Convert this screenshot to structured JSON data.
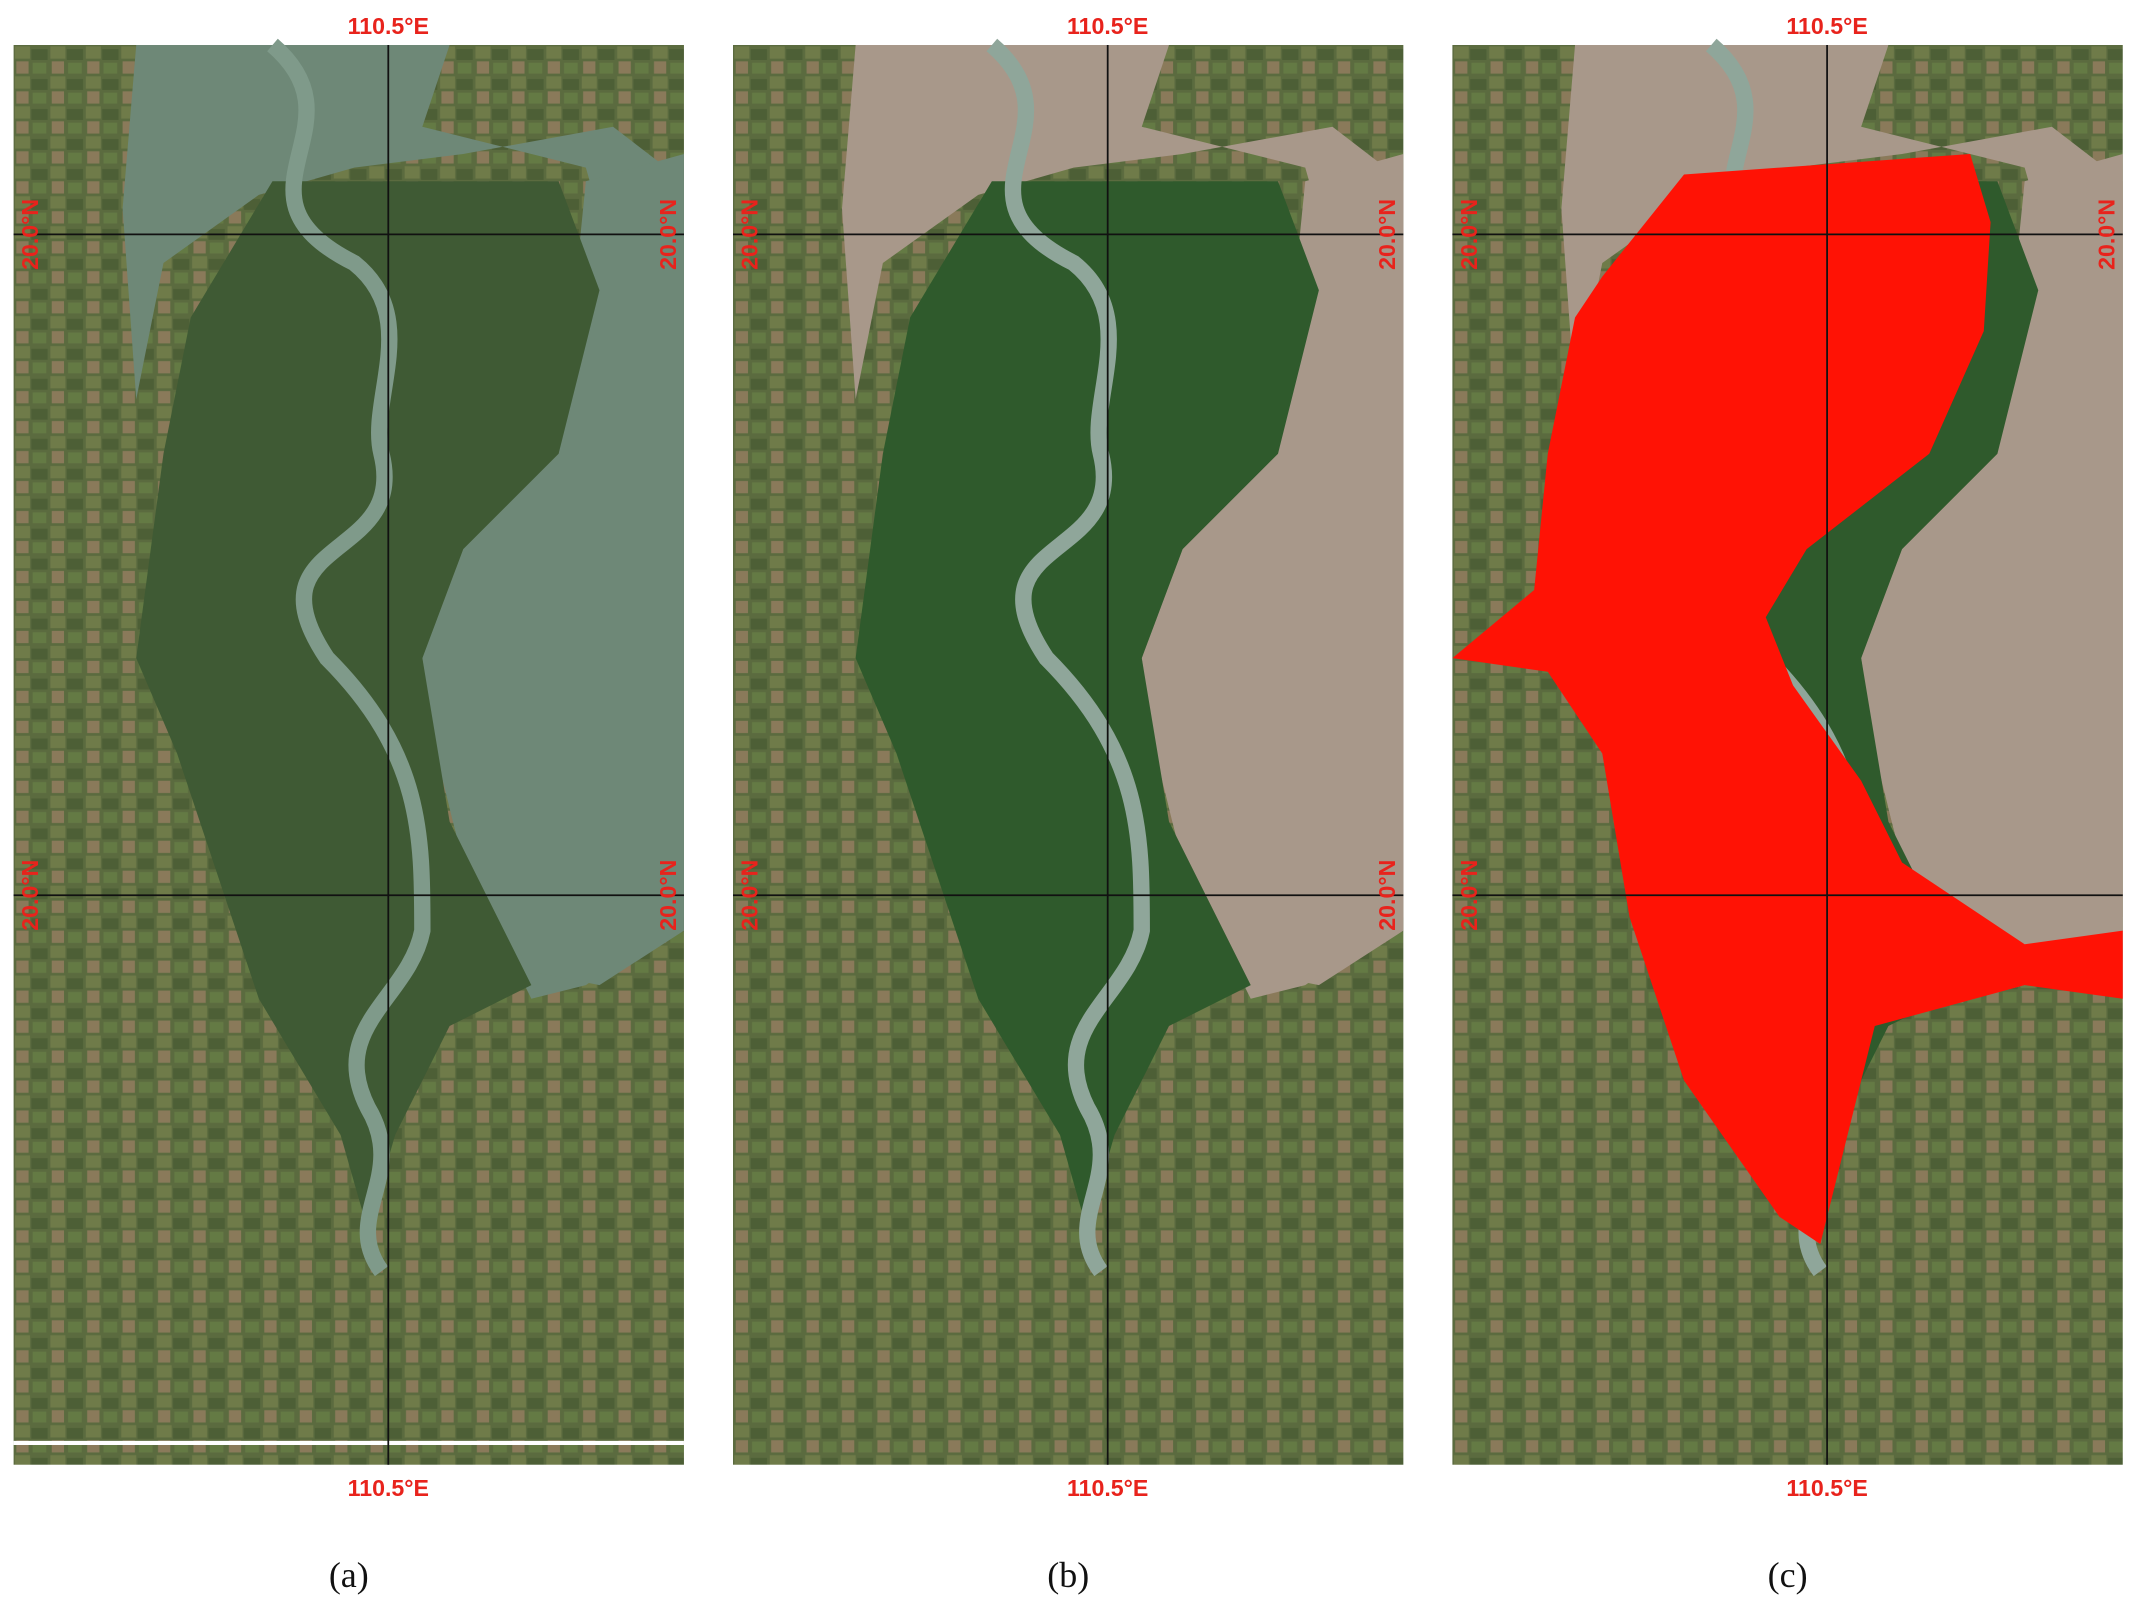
{
  "panels": [
    {
      "caption": "(a)",
      "lon_top": "110.5°E",
      "lon_bottom": "110.5°E",
      "lat_left": [
        "20.0°N",
        "20.0°N"
      ],
      "lat_right": [
        "20.0°N",
        "20.0°N"
      ]
    },
    {
      "caption": "(b)",
      "lon_top": "110.5°E",
      "lon_bottom": "110.5°E",
      "lat_left": [
        "20.0°N",
        "20.0°N"
      ],
      "lat_right": [
        "20.0°N",
        "20.0°N"
      ]
    },
    {
      "caption": "(c)",
      "lon_top": "110.5°E",
      "lon_bottom": "110.5°E",
      "lat_left": [
        "20.0°N",
        "20.0°N"
      ],
      "lat_right": [
        "20.0°N"
      ]
    }
  ]
}
